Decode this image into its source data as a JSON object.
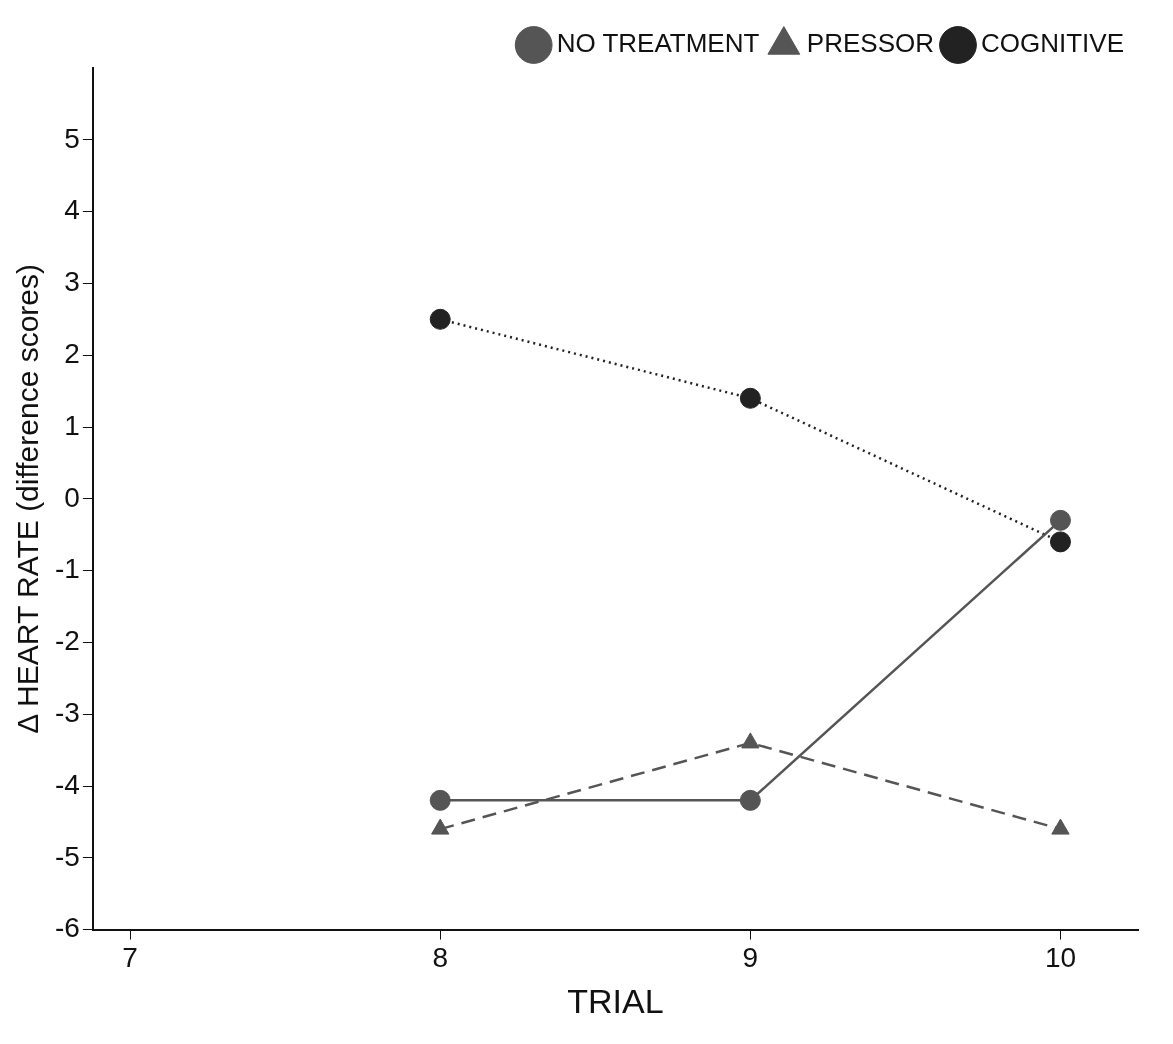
{
  "chart_data": {
    "type": "line",
    "xlabel": "TRIAL",
    "ylabel": "Δ HEART RATE (difference scores)",
    "xlim": [
      6.88,
      10.25
    ],
    "xticks": [
      7,
      8,
      9,
      10
    ],
    "ylim": [
      -6,
      6
    ],
    "yticks": [
      -6,
      -5,
      -4,
      -3,
      -2,
      -1,
      0,
      1,
      2,
      3,
      4,
      5
    ],
    "grid": false,
    "legend": "top right",
    "series": [
      {
        "name": "NO TREATMENT",
        "color": "#555555",
        "x": [
          8,
          9,
          10
        ],
        "values": [
          -4.2,
          -4.2,
          -0.3
        ],
        "marker": "circle",
        "line_style": "solid"
      },
      {
        "name": "PRESSOR",
        "color": "#555555",
        "x": [
          8,
          9,
          10
        ],
        "values": [
          -4.6,
          -3.4,
          -4.6
        ],
        "marker": "triangle",
        "line_style": "dashed"
      },
      {
        "name": "COGNITIVE",
        "color": "#222222",
        "x": [
          8,
          9,
          10
        ],
        "values": [
          2.5,
          1.4,
          -0.6
        ],
        "marker": "circle",
        "line_style": "dotted"
      }
    ]
  }
}
